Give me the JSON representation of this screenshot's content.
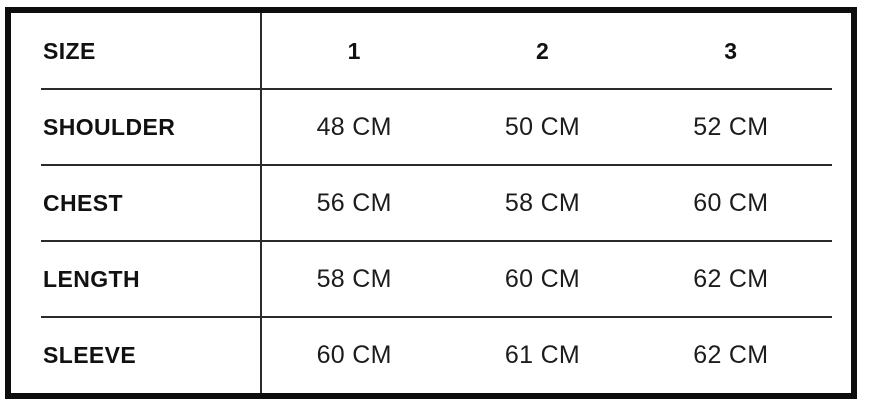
{
  "size_chart": {
    "unit": "CM",
    "header": {
      "label": "SIZE",
      "columns": [
        "1",
        "2",
        "3"
      ]
    },
    "rows": [
      {
        "label": "SHOULDER",
        "values": [
          "48 CM",
          "50 CM",
          "52 CM"
        ]
      },
      {
        "label": "CHEST",
        "values": [
          "56 CM",
          "58 CM",
          "60 CM"
        ]
      },
      {
        "label": "LENGTH",
        "values": [
          "58 CM",
          "60 CM",
          "62 CM"
        ]
      },
      {
        "label": "SLEEVE",
        "values": [
          "60 CM",
          "61 CM",
          "62 CM"
        ]
      }
    ],
    "colors": {
      "frame_border": "#0d0d0d",
      "grid_line": "#2b2b2b",
      "text": "#111111",
      "background": "#ffffff"
    }
  }
}
